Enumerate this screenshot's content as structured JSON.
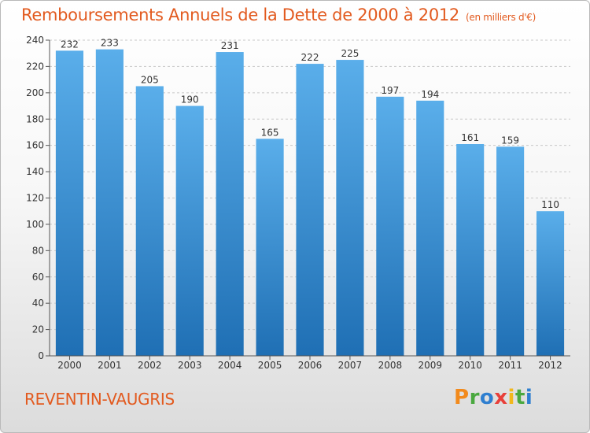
{
  "header": {
    "title": "Remboursements Annuels de la Dette de 2000 à 2012",
    "unit": "(en milliers d'€)"
  },
  "footer": {
    "commune": "REVENTIN-VAUGRIS",
    "logo": {
      "letters": [
        "P",
        "r",
        "o",
        "x",
        "i",
        "t",
        "i"
      ],
      "colors": [
        "#f28a1c",
        "#4aa83f",
        "#2f7fd0",
        "#e8403a",
        "#f2b81c",
        "#4aa83f",
        "#2f7fd0"
      ]
    }
  },
  "chart_data": {
    "type": "bar",
    "title": "Remboursements Annuels de la Dette de 2000 à 2012",
    "categories": [
      "2000",
      "2001",
      "2002",
      "2003",
      "2004",
      "2005",
      "2006",
      "2007",
      "2008",
      "2009",
      "2010",
      "2011",
      "2012"
    ],
    "values": [
      232,
      233,
      205,
      190,
      231,
      165,
      222,
      225,
      197,
      194,
      161,
      159,
      110
    ],
    "ylim": [
      0,
      240
    ],
    "yticks": [
      0,
      20,
      40,
      60,
      80,
      100,
      120,
      140,
      160,
      180,
      200,
      220,
      240
    ],
    "grid": true,
    "colors": {
      "bar_top": "#5aaeea",
      "bar_bottom": "#1f6fb4",
      "grid": "#c8c8c8"
    }
  }
}
